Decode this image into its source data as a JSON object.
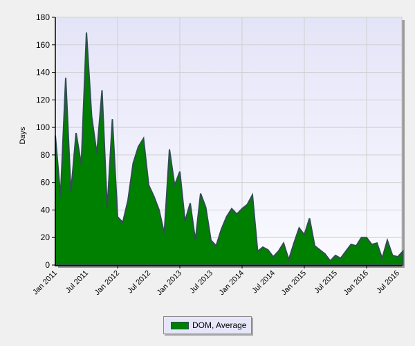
{
  "chart_data": {
    "type": "area",
    "title": "",
    "xlabel": "",
    "ylabel": "Days",
    "ylim": [
      0,
      180
    ],
    "yticks": [
      0,
      20,
      40,
      60,
      80,
      100,
      120,
      140,
      160,
      180
    ],
    "xtick_labels": [
      "Jan 2011",
      "Jul 2011",
      "Jan 2012",
      "Jul 2012",
      "Jan 2013",
      "Jul 2013",
      "Jan 2014",
      "Jul 2014",
      "Jan 2015",
      "Jul 2015",
      "Jan 2016",
      "Jul 2016"
    ],
    "grid": true,
    "legend_position": "bottom",
    "x": [
      "Jan 2011",
      "Feb 2011",
      "Mar 2011",
      "Apr 2011",
      "May 2011",
      "Jun 2011",
      "Jul 2011",
      "Aug 2011",
      "Sep 2011",
      "Oct 2011",
      "Nov 2011",
      "Dec 2011",
      "Jan 2012",
      "Feb 2012",
      "Mar 2012",
      "Apr 2012",
      "May 2012",
      "Jun 2012",
      "Jul 2012",
      "Aug 2012",
      "Sep 2012",
      "Oct 2012",
      "Nov 2012",
      "Dec 2012",
      "Jan 2013",
      "Feb 2013",
      "Mar 2013",
      "Apr 2013",
      "May 2013",
      "Jun 2013",
      "Jul 2013",
      "Aug 2013",
      "Sep 2013",
      "Oct 2013",
      "Nov 2013",
      "Dec 2013",
      "Jan 2014",
      "Feb 2014",
      "Mar 2014",
      "Apr 2014",
      "May 2014",
      "Jun 2014",
      "Jul 2014",
      "Aug 2014",
      "Sep 2014",
      "Oct 2014",
      "Nov 2014",
      "Dec 2014",
      "Jan 2015",
      "Feb 2015",
      "Mar 2015",
      "Apr 2015",
      "May 2015",
      "Jun 2015",
      "Jul 2015",
      "Aug 2015",
      "Sep 2015",
      "Oct 2015",
      "Nov 2015",
      "Dec 2015",
      "Jan 2016",
      "Feb 2016",
      "Mar 2016",
      "Apr 2016",
      "May 2016",
      "Jun 2016",
      "Jul 2016",
      "Aug 2016"
    ],
    "series": [
      {
        "name": "DOM, Average",
        "color": "#008000",
        "line_color": "#2f4f4f",
        "values": [
          94,
          50,
          136,
          53,
          96,
          73,
          169,
          108,
          81,
          127,
          41,
          106,
          35,
          31,
          47,
          74,
          86,
          92,
          58,
          50,
          40,
          23,
          84,
          58,
          68,
          32,
          45,
          18,
          52,
          42,
          18,
          14,
          26,
          35,
          41,
          37,
          41,
          44,
          51,
          10,
          13,
          11,
          6,
          10,
          16,
          4,
          16,
          27,
          22,
          34,
          14,
          11,
          8,
          3,
          7,
          5,
          10,
          15,
          14,
          20,
          20,
          15,
          16,
          5,
          18,
          7,
          6,
          10
        ]
      }
    ]
  },
  "legend": {
    "label": "DOM, Average"
  },
  "axis": {
    "ylabel": "Days"
  }
}
